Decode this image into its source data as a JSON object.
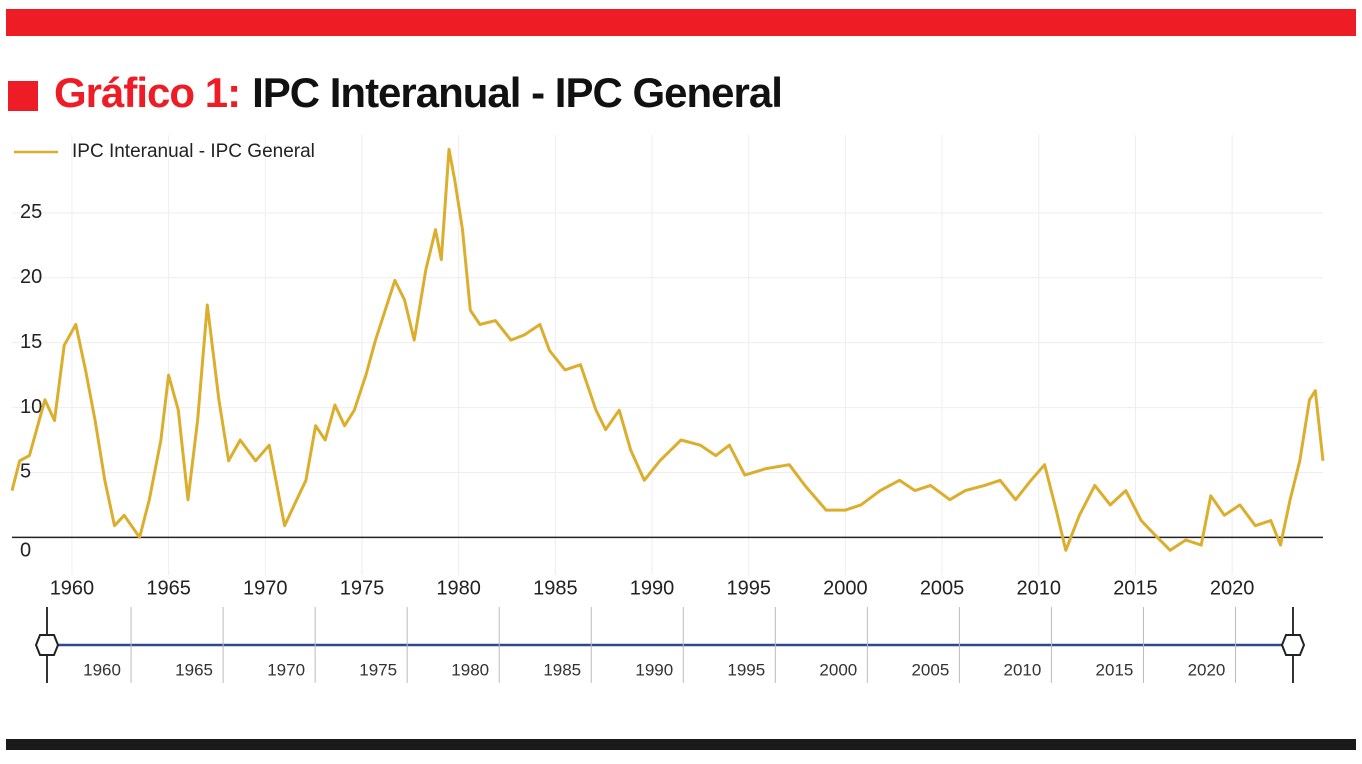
{
  "title_label": "Gráfico 1:",
  "chart_data": {
    "type": "line",
    "title": "IPC Interanual - IPC General",
    "x": [
      1956.9,
      1957.3,
      1957.8,
      1958.6,
      1959.1,
      1959.6,
      1960.2,
      1960.7,
      1961.2,
      1961.7,
      1962.2,
      1962.7,
      1963.5,
      1964.0,
      1964.6,
      1965.0,
      1965.5,
      1966.0,
      1966.5,
      1967.0,
      1967.6,
      1968.1,
      1968.7,
      1969.5,
      1970.2,
      1971.0,
      1971.5,
      1972.1,
      1972.6,
      1973.1,
      1973.6,
      1974.1,
      1974.6,
      1975.2,
      1975.7,
      1976.2,
      1976.7,
      1977.2,
      1977.7,
      1978.3,
      1978.8,
      1979.1,
      1979.5,
      1979.8,
      1980.2,
      1980.6,
      1981.1,
      1981.9,
      1982.7,
      1983.4,
      1984.2,
      1984.7,
      1985.5,
      1986.3,
      1987.1,
      1987.6,
      1988.3,
      1988.9,
      1989.6,
      1990.4,
      1991.5,
      1992.5,
      1993.3,
      1994.0,
      1994.8,
      1995.9,
      1997.1,
      1997.9,
      1999.0,
      2000.0,
      2000.8,
      2001.8,
      2002.8,
      2003.6,
      2004.4,
      2005.4,
      2006.2,
      2007.2,
      2008.0,
      2008.8,
      2009.6,
      2010.3,
      2010.9,
      2011.4,
      2012.1,
      2012.9,
      2013.7,
      2014.5,
      2015.3,
      2016.0,
      2016.8,
      2017.6,
      2018.4,
      2018.9,
      2019.6,
      2020.4,
      2021.2,
      2022.0,
      2022.5,
      2023.0,
      2023.5,
      2024.0,
      2024.3,
      2024.7
    ],
    "series": [
      {
        "name": "IPC Interanual - IPC General",
        "color": "#dcae2e",
        "values": [
          3.6,
          5.9,
          6.3,
          10.6,
          9.0,
          14.8,
          16.4,
          12.9,
          9.0,
          4.4,
          0.9,
          1.7,
          0.0,
          2.9,
          7.5,
          12.5,
          9.8,
          2.9,
          9.0,
          17.9,
          10.6,
          5.9,
          7.5,
          5.9,
          7.1,
          0.9,
          2.5,
          4.4,
          8.6,
          7.5,
          10.2,
          8.6,
          9.8,
          12.5,
          15.2,
          17.5,
          19.8,
          18.3,
          15.2,
          20.6,
          23.7,
          21.4,
          29.9,
          27.5,
          23.7,
          17.5,
          16.4,
          16.7,
          15.2,
          15.6,
          16.4,
          14.4,
          12.9,
          13.3,
          9.8,
          8.3,
          9.8,
          6.7,
          4.4,
          5.9,
          7.5,
          7.1,
          6.3,
          7.1,
          4.8,
          5.3,
          5.6,
          4.0,
          2.1,
          2.1,
          2.5,
          3.6,
          4.4,
          3.6,
          4.0,
          2.9,
          3.6,
          4.0,
          4.4,
          2.9,
          4.4,
          5.6,
          2.1,
          -1.0,
          1.7,
          4.0,
          2.5,
          3.6,
          1.3,
          0.2,
          -1.0,
          -0.2,
          -0.6,
          3.2,
          1.7,
          2.5,
          0.9,
          1.3,
          -0.6,
          2.9,
          5.9,
          10.6,
          11.3,
          5.9
        ]
      }
    ],
    "xlim": [
      1956.9,
      2024.7
    ],
    "xticks": [
      1960,
      1965,
      1970,
      1975,
      1980,
      1985,
      1990,
      1995,
      2000,
      2005,
      2010,
      2015,
      2020
    ],
    "ylim": [
      -2.9,
      31
    ],
    "yticks": [
      0,
      5,
      10,
      15,
      20,
      25
    ],
    "grid": true
  }
}
